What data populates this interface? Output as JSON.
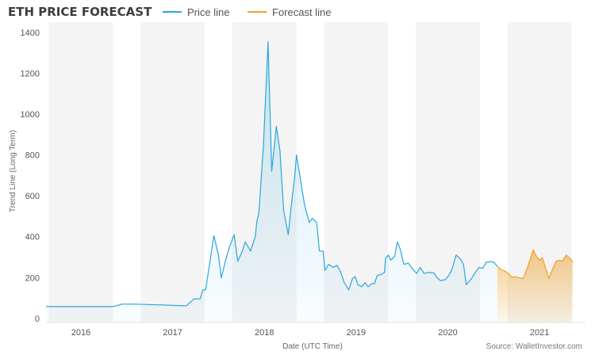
{
  "chart_data": {
    "type": "area",
    "title": "ETH PRICE FORECAST",
    "xlabel": "Date (UTC Time)",
    "ylabel": "Trend Line (Long Term)",
    "source_note": "Source: WalletInvestor.com",
    "xlim": [
      2015.62,
      2021.5
    ],
    "ylim": [
      -20,
      1450
    ],
    "yticks": [
      0,
      200,
      400,
      600,
      800,
      1000,
      1200,
      1400
    ],
    "year_bands": [
      {
        "label": "2016",
        "start": 2015.65,
        "end": 2016.35
      },
      {
        "label": "2017",
        "start": 2016.65,
        "end": 2017.35
      },
      {
        "label": "2018",
        "start": 2017.65,
        "end": 2018.35
      },
      {
        "label": "2019",
        "start": 2018.65,
        "end": 2019.35
      },
      {
        "label": "2020",
        "start": 2019.65,
        "end": 2020.35
      },
      {
        "label": "2021",
        "start": 2020.65,
        "end": 2021.35
      }
    ],
    "legend_position": "top",
    "series": [
      {
        "name": "Price line",
        "color": "#2aa7dc",
        "points": [
          [
            2015.62,
            58
          ],
          [
            2016.35,
            58
          ],
          [
            2016.45,
            70
          ],
          [
            2016.6,
            70
          ],
          [
            2017.15,
            62
          ],
          [
            2017.23,
            95
          ],
          [
            2017.3,
            96
          ],
          [
            2017.33,
            140
          ],
          [
            2017.36,
            140
          ],
          [
            2017.45,
            405
          ],
          [
            2017.5,
            310
          ],
          [
            2017.53,
            198
          ],
          [
            2017.58,
            290
          ],
          [
            2017.62,
            350
          ],
          [
            2017.67,
            410
          ],
          [
            2017.71,
            280
          ],
          [
            2017.76,
            330
          ],
          [
            2017.79,
            375
          ],
          [
            2017.85,
            330
          ],
          [
            2017.9,
            400
          ],
          [
            2017.92,
            480
          ],
          [
            2017.94,
            515
          ],
          [
            2017.99,
            850
          ],
          [
            2018.04,
            1355
          ],
          [
            2018.08,
            720
          ],
          [
            2018.13,
            940
          ],
          [
            2018.17,
            820
          ],
          [
            2018.21,
            530
          ],
          [
            2018.26,
            410
          ],
          [
            2018.29,
            540
          ],
          [
            2018.33,
            690
          ],
          [
            2018.35,
            800
          ],
          [
            2018.39,
            690
          ],
          [
            2018.44,
            550
          ],
          [
            2018.49,
            470
          ],
          [
            2018.52,
            490
          ],
          [
            2018.57,
            470
          ],
          [
            2018.6,
            330
          ],
          [
            2018.64,
            330
          ],
          [
            2018.66,
            235
          ],
          [
            2018.7,
            265
          ],
          [
            2018.75,
            250
          ],
          [
            2018.79,
            260
          ],
          [
            2018.83,
            230
          ],
          [
            2018.87,
            175
          ],
          [
            2018.92,
            140
          ],
          [
            2018.96,
            195
          ],
          [
            2018.99,
            205
          ],
          [
            2019.02,
            165
          ],
          [
            2019.06,
            155
          ],
          [
            2019.1,
            175
          ],
          [
            2019.13,
            155
          ],
          [
            2019.17,
            170
          ],
          [
            2019.2,
            170
          ],
          [
            2019.23,
            210
          ],
          [
            2019.27,
            215
          ],
          [
            2019.31,
            225
          ],
          [
            2019.32,
            292
          ],
          [
            2019.35,
            310
          ],
          [
            2019.38,
            285
          ],
          [
            2019.42,
            305
          ],
          [
            2019.45,
            375
          ],
          [
            2019.48,
            340
          ],
          [
            2019.52,
            265
          ],
          [
            2019.57,
            270
          ],
          [
            2019.61,
            245
          ],
          [
            2019.66,
            220
          ],
          [
            2019.7,
            250
          ],
          [
            2019.74,
            220
          ],
          [
            2019.79,
            225
          ],
          [
            2019.85,
            222
          ],
          [
            2019.88,
            200
          ],
          [
            2019.92,
            185
          ],
          [
            2019.97,
            190
          ],
          [
            2020.01,
            210
          ],
          [
            2020.04,
            235
          ],
          [
            2020.09,
            310
          ],
          [
            2020.13,
            295
          ],
          [
            2020.17,
            265
          ],
          [
            2020.2,
            165
          ],
          [
            2020.25,
            190
          ],
          [
            2020.3,
            225
          ],
          [
            2020.34,
            250
          ],
          [
            2020.38,
            245
          ],
          [
            2020.42,
            275
          ],
          [
            2020.47,
            278
          ],
          [
            2020.5,
            275
          ],
          [
            2020.54,
            255
          ]
        ]
      },
      {
        "name": "Forecast line",
        "color": "#f0a028",
        "points": [
          [
            2020.54,
            255
          ],
          [
            2020.58,
            240
          ],
          [
            2020.62,
            232
          ],
          [
            2020.66,
            220
          ],
          [
            2020.7,
            200
          ],
          [
            2020.73,
            205
          ],
          [
            2020.77,
            200
          ],
          [
            2020.82,
            195
          ],
          [
            2020.87,
            250
          ],
          [
            2020.9,
            295
          ],
          [
            2020.93,
            335
          ],
          [
            2020.97,
            300
          ],
          [
            2021.0,
            285
          ],
          [
            2021.03,
            298
          ],
          [
            2021.07,
            240
          ],
          [
            2021.1,
            195
          ],
          [
            2021.14,
            240
          ],
          [
            2021.18,
            280
          ],
          [
            2021.21,
            285
          ],
          [
            2021.25,
            280
          ],
          [
            2021.29,
            310
          ],
          [
            2021.33,
            295
          ],
          [
            2021.36,
            275
          ]
        ]
      }
    ]
  }
}
